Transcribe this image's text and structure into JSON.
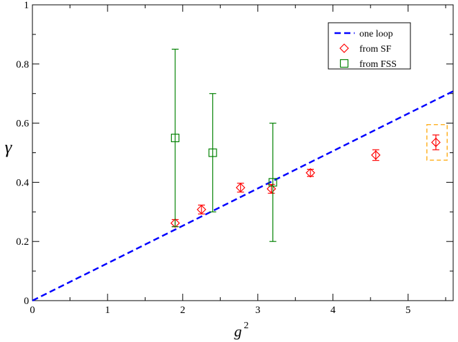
{
  "chart_data": {
    "type": "scatter",
    "title": "",
    "xlabel": "g",
    "xlabel_superscript": "2",
    "ylabel": "γ",
    "xlim": [
      0,
      5.6
    ],
    "ylim": [
      0,
      1
    ],
    "xticks": [
      0,
      1,
      2,
      3,
      4,
      5
    ],
    "yticks": [
      0,
      0.2,
      0.4,
      0.6,
      0.8,
      1
    ],
    "xtick_labels": [
      "0",
      "1",
      "2",
      "3",
      "4",
      "5"
    ],
    "ytick_labels": [
      "0",
      "0.2",
      "0.4",
      "0.6",
      "0.8",
      "1"
    ],
    "grid": false,
    "legend_position": "top-right",
    "series": [
      {
        "name": "one loop",
        "kind": "line",
        "style": "dashed",
        "color": "#0000ff",
        "x": [
          0,
          5.6
        ],
        "y": [
          0,
          0.708
        ]
      },
      {
        "name": "from SF",
        "kind": "points",
        "marker": "diamond",
        "color": "#ff0000",
        "x": [
          1.9,
          2.25,
          2.77,
          3.18,
          3.7,
          4.57,
          5.37
        ],
        "y": [
          0.262,
          0.308,
          0.382,
          0.378,
          0.432,
          0.492,
          0.535
        ],
        "yerr": [
          0.012,
          0.015,
          0.015,
          0.015,
          0.012,
          0.018,
          0.025
        ]
      },
      {
        "name": "from FSS",
        "kind": "points",
        "marker": "square",
        "color": "#008000",
        "x": [
          1.9,
          2.4,
          3.2
        ],
        "y": [
          0.55,
          0.5,
          0.4
        ],
        "yerr": [
          0.3,
          0.2,
          0.2
        ]
      }
    ],
    "highlight_box": {
      "color": "#ffa500",
      "style": "dashed",
      "x_range": [
        5.25,
        5.52
      ],
      "y_range": [
        0.475,
        0.595
      ]
    }
  }
}
